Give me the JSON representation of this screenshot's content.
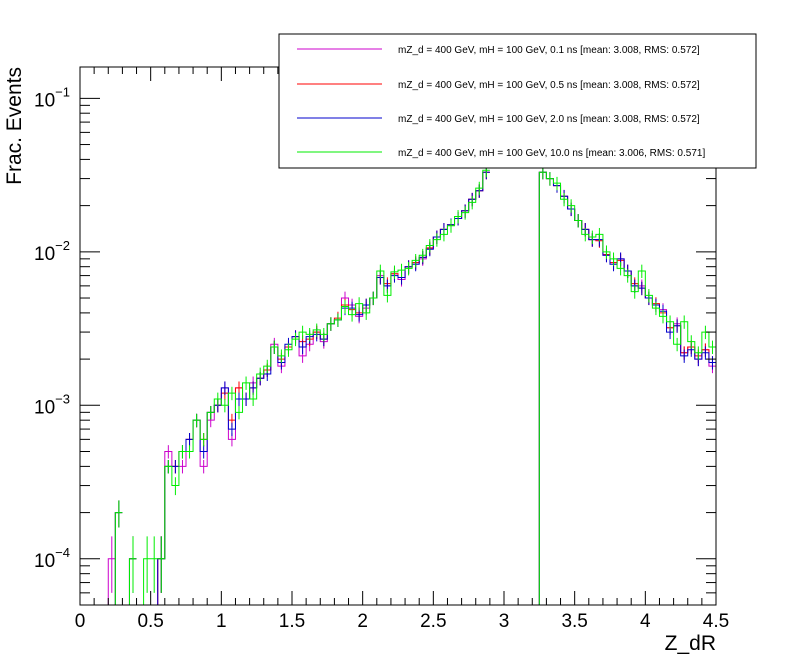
{
  "chart_data": {
    "type": "line",
    "style": "histogram-step",
    "xlabel": "Z_dR",
    "ylabel": "Frac. Events",
    "xlim": [
      0,
      4.5
    ],
    "ylim": [
      5e-05,
      0.16
    ],
    "yscale": "log",
    "x_ticks": [
      "0",
      "0.5",
      "1",
      "1.5",
      "2",
      "2.5",
      "3",
      "3.5",
      "4",
      "4.5"
    ],
    "y_ticks": [
      {
        "base": "10",
        "exp": "−4",
        "value": 0.0001
      },
      {
        "base": "10",
        "exp": "−3",
        "value": 0.001
      },
      {
        "base": "10",
        "exp": "−2",
        "value": 0.01
      },
      {
        "base": "10",
        "exp": "−1",
        "value": 0.1
      }
    ],
    "legend_position": "top-right",
    "bin_width": 0.05,
    "series": [
      {
        "name": "mZ_d = 400 GeV, mH = 100 GeV, 0.1 ns [mean: 3.008, RMS: 0.572]",
        "color": "#cc00cc",
        "x": [
          0.2,
          0.35,
          0.55,
          0.6,
          0.65,
          0.7,
          0.75,
          0.8,
          0.85,
          0.9,
          0.95,
          1.0,
          1.05,
          1.1,
          1.15,
          1.2,
          1.25,
          1.3,
          1.35,
          1.4,
          1.45,
          1.5,
          1.55,
          1.6,
          1.65,
          1.7,
          1.75,
          1.8,
          1.85,
          1.9,
          1.95,
          2.0,
          2.05,
          2.1,
          2.15,
          2.2,
          2.25,
          2.3,
          2.35,
          2.4,
          2.45,
          2.5,
          2.55,
          2.6,
          2.65,
          2.7,
          2.75,
          2.8,
          2.85,
          3.25,
          3.3,
          3.35,
          3.4,
          3.45,
          3.5,
          3.55,
          3.6,
          3.65,
          3.7,
          3.75,
          3.8,
          3.85,
          3.9,
          3.95,
          4.0,
          4.05,
          4.1,
          4.15,
          4.2,
          4.25,
          4.3,
          4.35,
          4.4,
          4.45
        ],
        "values": [
          0.0001,
          0.0001,
          0.0001,
          0.0005,
          0.0004,
          0.0004,
          0.0006,
          0.0008,
          0.0004,
          0.0008,
          0.001,
          0.0013,
          0.0006,
          0.0013,
          0.0011,
          0.0014,
          0.0015,
          0.0017,
          0.0025,
          0.0018,
          0.0024,
          0.0028,
          0.0021,
          0.0025,
          0.003,
          0.0026,
          0.0034,
          0.0036,
          0.005,
          0.0045,
          0.0038,
          0.0043,
          0.005,
          0.007,
          0.006,
          0.0072,
          0.0066,
          0.008,
          0.0085,
          0.009,
          0.0105,
          0.0125,
          0.014,
          0.015,
          0.0165,
          0.0185,
          0.022,
          0.025,
          0.033,
          0.033,
          0.03,
          0.027,
          0.023,
          0.019,
          0.016,
          0.014,
          0.012,
          0.012,
          0.0095,
          0.0085,
          0.009,
          0.0075,
          0.006,
          0.006,
          0.005,
          0.0045,
          0.0042,
          0.0032,
          0.0034,
          0.0022,
          0.0024,
          0.002,
          0.0023,
          0.0018
        ]
      },
      {
        "name": "mZ_d = 400 GeV, mH = 100 GeV, 0.5 ns [mean: 3.008, RMS: 0.572]",
        "color": "#ff0000",
        "x": [
          0.25,
          0.35,
          0.55,
          0.6,
          0.65,
          0.7,
          0.75,
          0.8,
          0.85,
          0.9,
          0.95,
          1.0,
          1.05,
          1.1,
          1.15,
          1.2,
          1.25,
          1.3,
          1.35,
          1.4,
          1.45,
          1.5,
          1.55,
          1.6,
          1.65,
          1.7,
          1.75,
          1.8,
          1.85,
          1.9,
          1.95,
          2.0,
          2.05,
          2.1,
          2.15,
          2.2,
          2.25,
          2.3,
          2.35,
          2.4,
          2.45,
          2.5,
          2.55,
          2.6,
          2.65,
          2.7,
          2.75,
          2.8,
          2.85,
          3.25,
          3.3,
          3.35,
          3.4,
          3.45,
          3.5,
          3.55,
          3.6,
          3.65,
          3.7,
          3.75,
          3.8,
          3.85,
          3.9,
          3.95,
          4.0,
          4.05,
          4.1,
          4.15,
          4.2,
          4.25,
          4.3,
          4.35,
          4.4,
          4.45
        ],
        "values": [
          0.0002,
          0.0001,
          0.0001,
          0.0004,
          0.0004,
          0.0005,
          0.0006,
          0.0008,
          0.0006,
          0.0009,
          0.001,
          0.0012,
          0.0008,
          0.0013,
          0.0011,
          0.0013,
          0.0015,
          0.0017,
          0.0024,
          0.002,
          0.0024,
          0.0028,
          0.0026,
          0.0027,
          0.003,
          0.0027,
          0.0034,
          0.0037,
          0.0045,
          0.0042,
          0.004,
          0.0045,
          0.005,
          0.0068,
          0.0062,
          0.0072,
          0.0068,
          0.008,
          0.0085,
          0.0092,
          0.0106,
          0.0125,
          0.014,
          0.015,
          0.0165,
          0.0185,
          0.022,
          0.025,
          0.033,
          0.033,
          0.03,
          0.027,
          0.023,
          0.019,
          0.016,
          0.014,
          0.012,
          0.0118,
          0.0096,
          0.0085,
          0.0088,
          0.0075,
          0.0062,
          0.0058,
          0.005,
          0.0046,
          0.004,
          0.0032,
          0.0033,
          0.0022,
          0.0024,
          0.0021,
          0.0023,
          0.0019
        ]
      },
      {
        "name": "mZ_d = 400 GeV, mH = 100 GeV, 2.0 ns [mean: 3.008, RMS: 0.572]",
        "color": "#0000cc",
        "x": [
          0.25,
          0.35,
          0.55,
          0.6,
          0.65,
          0.7,
          0.75,
          0.8,
          0.85,
          0.9,
          0.95,
          1.0,
          1.05,
          1.1,
          1.15,
          1.2,
          1.25,
          1.3,
          1.35,
          1.4,
          1.45,
          1.5,
          1.55,
          1.6,
          1.65,
          1.7,
          1.75,
          1.8,
          1.85,
          1.9,
          1.95,
          2.0,
          2.05,
          2.1,
          2.15,
          2.2,
          2.25,
          2.3,
          2.35,
          2.4,
          2.45,
          2.5,
          2.55,
          2.6,
          2.65,
          2.7,
          2.75,
          2.8,
          2.85,
          3.25,
          3.3,
          3.35,
          3.4,
          3.45,
          3.5,
          3.55,
          3.6,
          3.65,
          3.7,
          3.75,
          3.8,
          3.85,
          3.9,
          3.95,
          4.0,
          4.05,
          4.1,
          4.15,
          4.2,
          4.25,
          4.3,
          4.35,
          4.4,
          4.45
        ],
        "values": [
          0.0002,
          0.0001,
          0.0001,
          0.0004,
          0.0004,
          0.0005,
          0.0006,
          0.0008,
          0.0005,
          0.0009,
          0.001,
          0.0013,
          0.0007,
          0.0011,
          0.0011,
          0.0013,
          0.0015,
          0.0016,
          0.0024,
          0.0019,
          0.0025,
          0.0028,
          0.0024,
          0.0028,
          0.0029,
          0.0027,
          0.0034,
          0.0036,
          0.0043,
          0.0043,
          0.0039,
          0.0045,
          0.005,
          0.0068,
          0.006,
          0.007,
          0.0068,
          0.008,
          0.0083,
          0.0092,
          0.0104,
          0.0125,
          0.014,
          0.015,
          0.0165,
          0.0185,
          0.022,
          0.025,
          0.033,
          0.033,
          0.03,
          0.027,
          0.023,
          0.019,
          0.016,
          0.014,
          0.012,
          0.012,
          0.0095,
          0.0083,
          0.009,
          0.0075,
          0.006,
          0.0058,
          0.005,
          0.0045,
          0.0041,
          0.003,
          0.0033,
          0.0021,
          0.0023,
          0.002,
          0.0022,
          0.0019
        ]
      },
      {
        "name": "mZ_d = 400 GeV, mH = 100 GeV, 10.0 ns [mean: 3.006, RMS: 0.571]",
        "color": "#00ee00",
        "x": [
          0.25,
          0.35,
          0.45,
          0.5,
          0.55,
          0.6,
          0.65,
          0.7,
          0.75,
          0.8,
          0.85,
          0.9,
          0.95,
          1.0,
          1.05,
          1.1,
          1.15,
          1.2,
          1.25,
          1.3,
          1.35,
          1.4,
          1.45,
          1.5,
          1.55,
          1.6,
          1.65,
          1.7,
          1.75,
          1.8,
          1.85,
          1.9,
          1.95,
          2.0,
          2.05,
          2.1,
          2.15,
          2.2,
          2.25,
          2.3,
          2.35,
          2.4,
          2.45,
          2.5,
          2.55,
          2.6,
          2.65,
          2.7,
          2.75,
          2.8,
          2.85,
          3.25,
          3.3,
          3.35,
          3.4,
          3.45,
          3.5,
          3.55,
          3.6,
          3.65,
          3.7,
          3.75,
          3.8,
          3.85,
          3.9,
          3.95,
          4.0,
          4.05,
          4.1,
          4.15,
          4.2,
          4.25,
          4.3,
          4.35,
          4.4,
          4.45
        ],
        "values": [
          0.0002,
          0.0001,
          0.0001,
          0.0001,
          0.0001,
          0.0004,
          0.0003,
          0.0005,
          0.0005,
          0.0008,
          0.0006,
          0.0009,
          0.0011,
          0.001,
          0.0012,
          0.0009,
          0.0014,
          0.0011,
          0.0016,
          0.0018,
          0.0024,
          0.0021,
          0.0023,
          0.0027,
          0.003,
          0.0029,
          0.0031,
          0.0029,
          0.0034,
          0.0036,
          0.0044,
          0.0039,
          0.0046,
          0.004,
          0.005,
          0.0075,
          0.0052,
          0.0074,
          0.0076,
          0.0078,
          0.0088,
          0.0095,
          0.011,
          0.012,
          0.013,
          0.0148,
          0.017,
          0.018,
          0.021,
          0.026,
          0.034,
          0.033,
          0.03,
          0.028,
          0.022,
          0.02,
          0.016,
          0.013,
          0.0125,
          0.013,
          0.01,
          0.009,
          0.0078,
          0.007,
          0.0055,
          0.0075,
          0.0052,
          0.0043,
          0.0038,
          0.0035,
          0.0025,
          0.0035,
          0.0026,
          0.0022,
          0.003,
          0.0024
        ]
      }
    ]
  }
}
